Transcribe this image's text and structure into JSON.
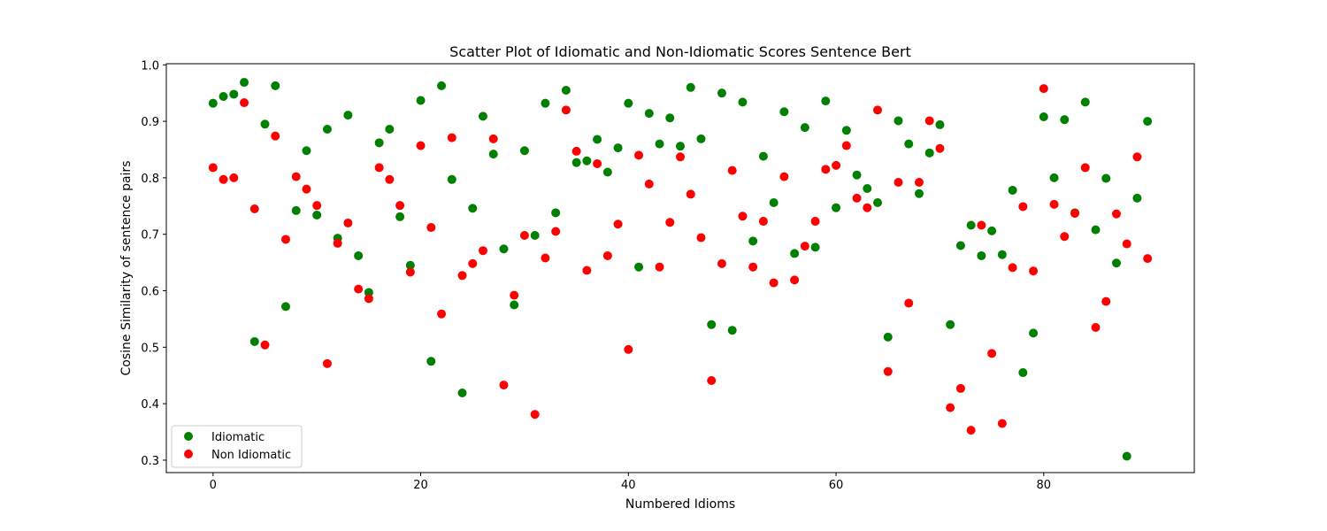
{
  "chart_data": {
    "type": "scatter",
    "title": "Scatter Plot of Idiomatic and Non-Idiomatic Scores Sentence Bert",
    "xlabel": "Numbered Idioms",
    "ylabel": "Cosine Similarity of sentence pairs",
    "xlim": [
      -4.5,
      94.5
    ],
    "ylim": [
      0.278,
      1.002
    ],
    "xticks": [
      0,
      20,
      40,
      60,
      80
    ],
    "xtick_labels": [
      "0",
      "20",
      "40",
      "60",
      "80"
    ],
    "yticks": [
      0.3,
      0.4,
      0.5,
      0.6,
      0.7,
      0.8,
      0.9,
      1.0
    ],
    "ytick_labels": [
      "0.3",
      "0.4",
      "0.5",
      "0.6",
      "0.7",
      "0.8",
      "0.9",
      "1.0"
    ],
    "grid": false,
    "legend_position": "lower-left",
    "series": [
      {
        "name": "Idiomatic",
        "color": "#008000",
        "x": [
          0,
          1,
          2,
          3,
          4,
          5,
          6,
          7,
          8,
          9,
          10,
          11,
          12,
          13,
          14,
          15,
          16,
          17,
          18,
          19,
          20,
          21,
          22,
          23,
          24,
          25,
          26,
          27,
          28,
          29,
          30,
          31,
          32,
          33,
          34,
          35,
          36,
          37,
          38,
          39,
          40,
          41,
          42,
          43,
          44,
          45,
          46,
          47,
          48,
          49,
          50,
          51,
          52,
          53,
          54,
          55,
          56,
          57,
          58,
          59,
          60,
          61,
          62,
          63,
          64,
          65,
          66,
          67,
          68,
          69,
          70,
          71,
          72,
          73,
          74,
          75,
          76,
          77,
          78,
          79,
          80,
          81,
          82,
          83,
          84,
          85,
          86,
          87,
          88,
          89,
          90
        ],
        "y": [
          0.932,
          0.944,
          0.948,
          0.969,
          0.51,
          0.895,
          0.963,
          0.572,
          0.742,
          0.848,
          0.734,
          0.886,
          0.693,
          0.911,
          0.662,
          0.597,
          0.862,
          0.886,
          0.731,
          0.645,
          0.937,
          0.475,
          0.963,
          0.797,
          0.419,
          0.746,
          0.909,
          0.842,
          0.674,
          0.575,
          0.848,
          0.698,
          0.932,
          0.738,
          0.955,
          0.827,
          0.83,
          0.868,
          0.81,
          0.853,
          0.932,
          0.642,
          0.914,
          0.86,
          0.906,
          0.856,
          0.96,
          0.869,
          0.54,
          0.95,
          0.53,
          0.934,
          0.688,
          0.838,
          0.756,
          0.917,
          0.666,
          0.889,
          0.677,
          0.936,
          0.747,
          0.884,
          0.805,
          0.781,
          0.756,
          0.518,
          0.901,
          0.86,
          0.772,
          0.844,
          0.894,
          0.54,
          0.68,
          0.716,
          0.662,
          0.706,
          0.664,
          0.778,
          0.455,
          0.525,
          0.908,
          0.8,
          0.903,
          0.738,
          0.934,
          0.708,
          0.799,
          0.649,
          0.307,
          0.764,
          0.9
        ]
      },
      {
        "name": "Non Idiomatic",
        "color": "#ff0000",
        "x": [
          0,
          1,
          2,
          3,
          4,
          5,
          6,
          7,
          8,
          9,
          10,
          11,
          12,
          13,
          14,
          15,
          16,
          17,
          18,
          19,
          20,
          21,
          22,
          23,
          24,
          25,
          26,
          27,
          28,
          29,
          30,
          31,
          32,
          33,
          34,
          35,
          36,
          37,
          38,
          39,
          40,
          41,
          42,
          43,
          44,
          45,
          46,
          47,
          48,
          49,
          50,
          51,
          52,
          53,
          54,
          55,
          56,
          57,
          58,
          59,
          60,
          61,
          62,
          63,
          64,
          65,
          66,
          67,
          68,
          69,
          70,
          71,
          72,
          73,
          74,
          75,
          76,
          77,
          78,
          79,
          80,
          81,
          82,
          83,
          84,
          85,
          86,
          87,
          88,
          89,
          90
        ],
        "y": [
          0.818,
          0.797,
          0.8,
          0.933,
          0.745,
          0.504,
          0.874,
          0.691,
          0.802,
          0.78,
          0.751,
          0.471,
          0.684,
          0.72,
          0.603,
          0.586,
          0.818,
          0.797,
          0.751,
          0.633,
          0.857,
          0.712,
          0.559,
          0.871,
          0.627,
          0.648,
          0.671,
          0.869,
          0.433,
          0.592,
          0.698,
          0.381,
          0.658,
          0.705,
          0.92,
          0.847,
          0.636,
          0.825,
          0.662,
          0.718,
          0.496,
          0.84,
          0.789,
          0.642,
          0.721,
          0.837,
          0.771,
          0.694,
          0.441,
          0.648,
          0.813,
          0.732,
          0.642,
          0.723,
          0.614,
          0.802,
          0.619,
          0.679,
          0.723,
          0.815,
          0.822,
          0.857,
          0.764,
          0.747,
          0.92,
          0.457,
          0.792,
          0.578,
          0.792,
          0.901,
          0.852,
          0.393,
          0.427,
          0.353,
          0.716,
          0.489,
          0.365,
          0.641,
          0.749,
          0.635,
          0.958,
          0.753,
          0.696,
          0.737,
          0.818,
          0.535,
          0.581,
          0.736,
          0.683,
          0.837,
          0.657
        ]
      }
    ]
  }
}
